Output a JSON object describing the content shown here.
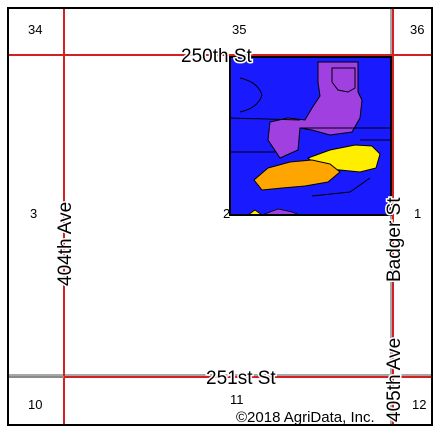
{
  "map": {
    "colors": {
      "road": "#d42020",
      "section_line": "#8a8a8a",
      "field_border": "#000000",
      "soil_blue": "#1a1aff",
      "soil_purple": "#a040e0",
      "soil_orange": "#ffa500",
      "soil_yellow": "#ffee00",
      "frame": "#000000"
    },
    "roads": {
      "north": "250th St",
      "south": "251st St",
      "west": "404th Ave",
      "east_lower": "405th Ave",
      "east_upper": "Badger St"
    },
    "sections": {
      "nw": "34",
      "n": "35",
      "ne": "36",
      "w": "3",
      "field_sw": "2",
      "e": "1",
      "sw": "10",
      "s": "11",
      "se": "12"
    },
    "copyright": "©2018 AgriData, Inc."
  }
}
